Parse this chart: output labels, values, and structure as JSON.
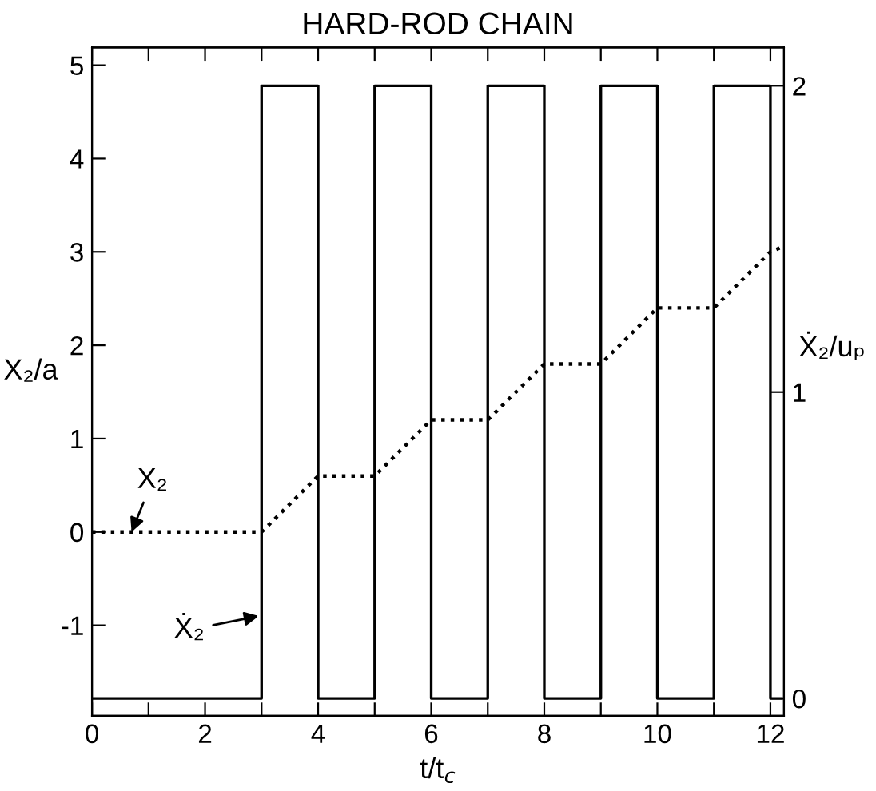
{
  "chart_data": {
    "type": "line",
    "title": "HARD-ROD CHAIN",
    "xlabel": "t/t$_{c}$",
    "ylabel": "X₂/a",
    "y2label": "Ẋ₂/uₚ",
    "series": [
      {
        "color": "#000000",
        "line_style": "dotted",
        "x": [
          0,
          3,
          4,
          5,
          6,
          7,
          8,
          9,
          10,
          11,
          12,
          12.2
        ],
        "values": [
          0,
          0,
          0.6,
          0.6,
          1.2,
          1.2,
          1.8,
          1.8,
          2.4,
          2.4,
          3.0,
          3.05
        ]
      },
      {
        "type": "step",
        "color": "#000000",
        "line_style": "solid",
        "axis": "y2",
        "x": [
          0,
          3,
          4,
          5,
          6,
          7,
          8,
          9,
          10,
          11,
          12,
          12.2
        ],
        "values": [
          0,
          2,
          0,
          2,
          0,
          2,
          0,
          2,
          0,
          2,
          0,
          0
        ]
      }
    ],
    "annotations": [
      {
        "text": "X₂",
        "x": 0.7,
        "y": 0
      },
      {
        "text": "Ẋ₂",
        "x": 2.95,
        "y": -0.9
      }
    ],
    "xlim": [
      0,
      12.24
    ],
    "ylim": [
      -1.97,
      5.19
    ],
    "y2lim": [
      -0.057,
      2.125
    ],
    "xticks": [
      0,
      {
        "value": 1,
        "label": null
      },
      2,
      {
        "value": 3,
        "label": null
      },
      4,
      {
        "value": 5,
        "label": null
      },
      6,
      {
        "value": 7,
        "label": null
      },
      8,
      {
        "value": 9,
        "label": null
      },
      10,
      {
        "value": 11,
        "label": null
      },
      12
    ],
    "yticks": [
      -1,
      0,
      1,
      2,
      3,
      4,
      5
    ],
    "y2ticks": [
      0,
      1,
      2
    ],
    "grid": false,
    "legend": false
  }
}
